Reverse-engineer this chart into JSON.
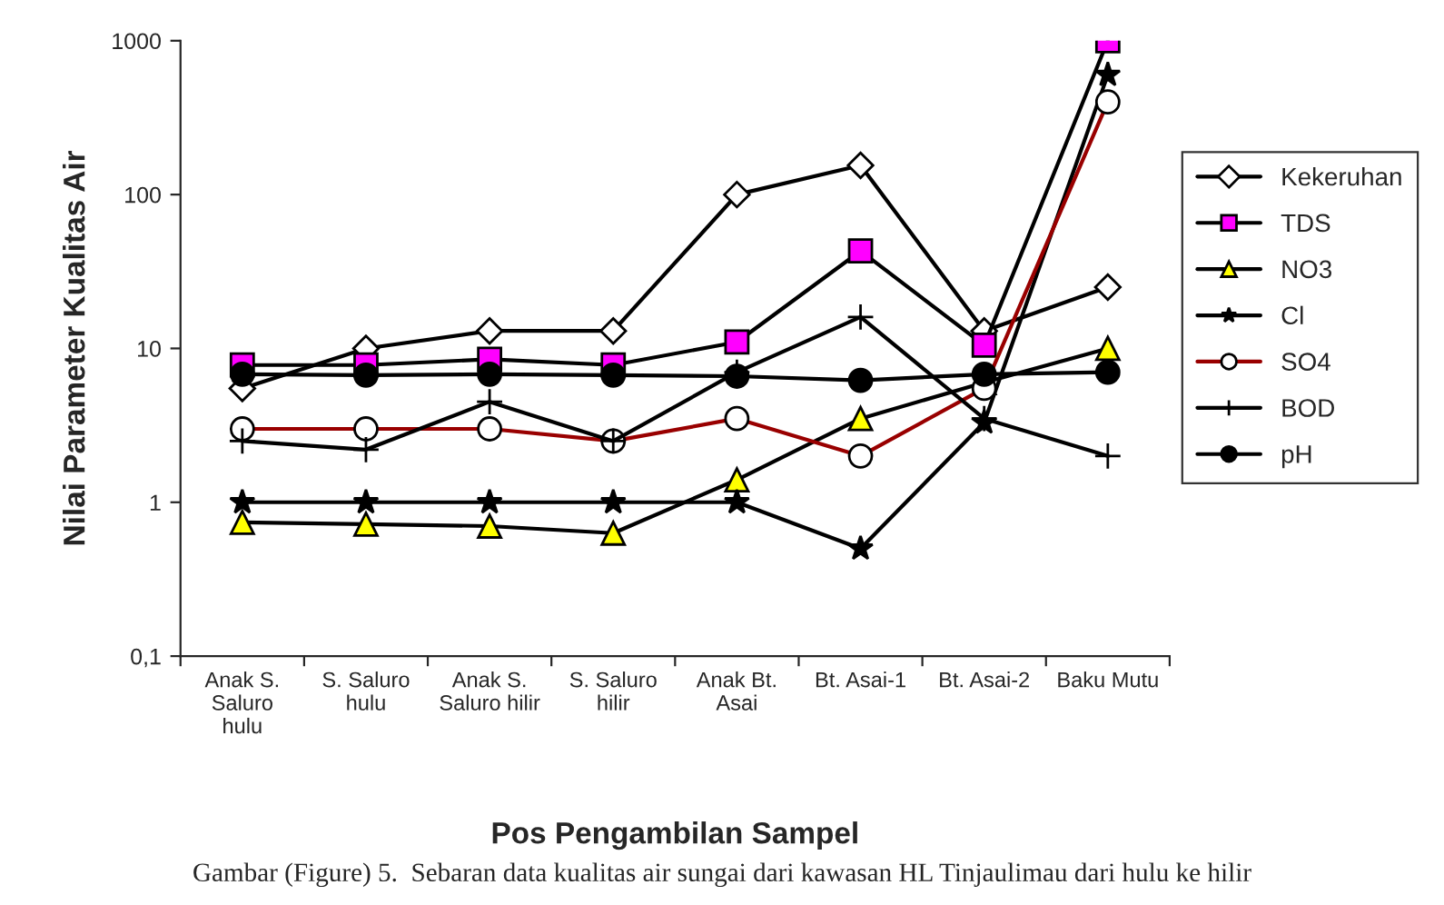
{
  "chart_data": {
    "type": "line",
    "xlabel": "Pos Pengambilan Sampel",
    "ylabel": "Nilai Parameter Kualitas Air",
    "categories": [
      "Anak S.\nSaluro\nhulu",
      "S. Saluro\nhulu",
      "Anak S.\nSaluro hilir",
      "S. Saluro\nhilir",
      "Anak Bt.\nAsai",
      "Bt. Asai-1",
      "Bt. Asai-2",
      "Baku Mutu"
    ],
    "series": [
      {
        "name": "Kekeruhan",
        "color": "#ffffff",
        "marker": "diamond",
        "values": [
          5.5,
          10,
          13,
          13,
          100,
          155,
          13,
          25
        ]
      },
      {
        "name": "TDS",
        "color": "#ff00ff",
        "marker": "square",
        "values": [
          7.8,
          7.8,
          8.5,
          7.8,
          11,
          43,
          10.5,
          1000
        ]
      },
      {
        "name": "NO3",
        "color": "#ffff00",
        "marker": "triangle",
        "values": [
          0.74,
          0.72,
          0.7,
          0.63,
          1.4,
          3.5,
          6,
          10
        ]
      },
      {
        "name": "Cl",
        "color": "#000000",
        "marker": "star",
        "values": [
          1,
          1,
          1,
          1,
          1,
          0.5,
          3.3,
          600
        ]
      },
      {
        "name": "SO4",
        "color": "#990000",
        "marker": "circle",
        "values": [
          3,
          3,
          3,
          2.5,
          3.5,
          2,
          5.5,
          400
        ]
      },
      {
        "name": "BOD",
        "color": "#000000",
        "marker": "cross",
        "values": [
          2.5,
          2.2,
          4.5,
          2.5,
          7,
          16,
          3.5,
          2
        ]
      },
      {
        "name": "pH",
        "color": "#000000",
        "marker": "circle",
        "values": [
          6.8,
          6.7,
          6.8,
          6.7,
          6.6,
          6.2,
          6.8,
          7
        ]
      }
    ],
    "log": true,
    "ylim": [
      0.1,
      1000
    ],
    "yticks": [
      {
        "value": 0.1,
        "label": "0,1"
      },
      1,
      10,
      100,
      1000
    ],
    "grid": false,
    "legend": "right",
    "line_style": "solid",
    "annotations": [
      "Gambar (Figure) 5.  Sebaran data kualitas air sungai dari kawasan HL Tinjaulimau dari hulu ke hilir"
    ]
  }
}
